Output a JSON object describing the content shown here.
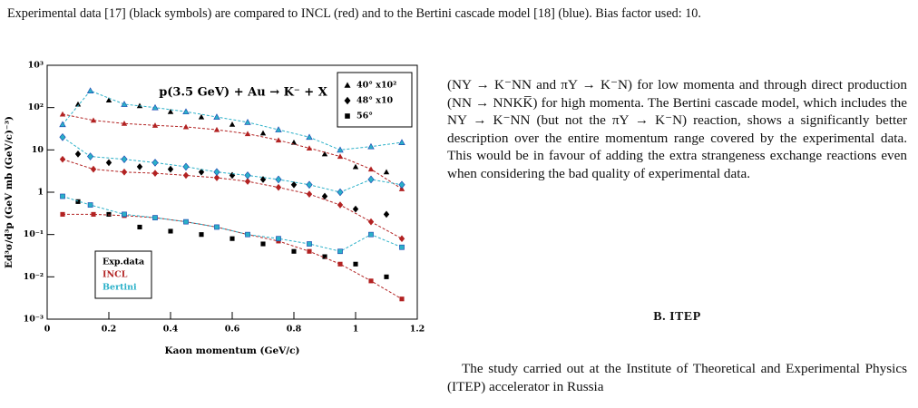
{
  "caption": "Experimental data [17] (black symbols) are compared to INCL (red) and to the Bertini cascade model [18] (blue). Bias factor used: 10.",
  "body": {
    "paragraph_1": "(NY → K⁻NN and πY → K⁻N) for low momenta and through direct production (NN → NNKK̅) for high momenta. The Bertini cascade model, which includes the NY → K⁻NN (but not the πY → K⁻N) reaction, shows a significantly better description over the entire momentum range covered by the experimental data. This would be in favour of adding the extra strangeness exchange reactions even when considering the bad quality of experimental data.",
    "section_heading": "B.   ITEP",
    "paragraph_2": "The study carried out at the Institute of Theoretical and Experimental Physics (ITEP) accelerator in Russia"
  },
  "chart_data": {
    "type": "scatter",
    "title": "p(3.5 GeV) + Au → K⁻ + X",
    "x_label": "Kaon momentum (GeV/c)",
    "y_label": "Ed³σ/d³p (GeV mb (GeV/c)⁻³)",
    "xlim": [
      0,
      1.2
    ],
    "xticks": [
      0,
      0.2,
      0.4,
      0.6,
      0.8,
      1,
      1.2
    ],
    "ylim": [
      0.001,
      1000
    ],
    "log_y": true,
    "yticks": [
      {
        "value": 0.001,
        "label": "10⁻³"
      },
      {
        "value": 0.01,
        "label": "10⁻²"
      },
      {
        "value": 0.1,
        "label": "10⁻¹"
      },
      1,
      {
        "value": 10,
        "label": "10"
      },
      {
        "value": 100,
        "label": "10²"
      },
      {
        "value": 1000,
        "label": "10³"
      }
    ],
    "angles": [
      {
        "label": "40° x10²",
        "marker": "triangle"
      },
      {
        "label": "48° x10",
        "marker": "diamond"
      },
      {
        "label": "56°",
        "marker": "square"
      }
    ],
    "models": [
      {
        "name": "Exp.data",
        "color": "#000000",
        "line": false,
        "series": [
          {
            "x": [
              0.1,
              0.2,
              0.3,
              0.4,
              0.5,
              0.6,
              0.7,
              0.8,
              0.9,
              1.0,
              1.1
            ],
            "values": [
              120,
              150,
              110,
              80,
              60,
              40,
              25,
              15,
              8,
              4,
              3
            ]
          },
          {
            "x": [
              0.1,
              0.2,
              0.3,
              0.4,
              0.5,
              0.6,
              0.7,
              0.8,
              0.9,
              1.0,
              1.1
            ],
            "values": [
              8,
              5,
              4,
              3.5,
              3,
              2.5,
              2,
              1.5,
              0.8,
              0.4,
              0.3
            ]
          },
          {
            "x": [
              0.1,
              0.2,
              0.3,
              0.4,
              0.5,
              0.6,
              0.7,
              0.8,
              0.9,
              1.0,
              1.1
            ],
            "values": [
              0.6,
              0.3,
              0.15,
              0.12,
              0.1,
              0.08,
              0.06,
              0.04,
              0.03,
              0.02,
              0.01
            ]
          }
        ]
      },
      {
        "name": "INCL",
        "color": "#b22222",
        "line": true,
        "series": [
          {
            "x": [
              0.05,
              0.15,
              0.25,
              0.35,
              0.45,
              0.55,
              0.65,
              0.75,
              0.85,
              0.95,
              1.05,
              1.15
            ],
            "values": [
              70,
              50,
              42,
              38,
              35,
              30,
              24,
              17,
              11,
              7,
              3.5,
              1.2
            ]
          },
          {
            "x": [
              0.05,
              0.15,
              0.25,
              0.35,
              0.45,
              0.55,
              0.65,
              0.75,
              0.85,
              0.95,
              1.05,
              1.15
            ],
            "values": [
              6,
              3.5,
              3,
              2.8,
              2.5,
              2.2,
              1.8,
              1.3,
              0.9,
              0.5,
              0.2,
              0.08
            ]
          },
          {
            "x": [
              0.05,
              0.15,
              0.25,
              0.35,
              0.45,
              0.55,
              0.65,
              0.75,
              0.85,
              0.95,
              1.05,
              1.15
            ],
            "values": [
              0.3,
              0.3,
              0.28,
              0.25,
              0.2,
              0.15,
              0.1,
              0.07,
              0.04,
              0.02,
              0.008,
              0.003
            ]
          }
        ]
      },
      {
        "name": "Bertini",
        "color": "#2ab0c8",
        "line": true,
        "series": [
          {
            "x": [
              0.05,
              0.14,
              0.25,
              0.35,
              0.45,
              0.55,
              0.65,
              0.75,
              0.85,
              0.95,
              1.05,
              1.15
            ],
            "values": [
              40,
              250,
              120,
              100,
              80,
              60,
              45,
              30,
              20,
              10,
              12,
              15
            ]
          },
          {
            "x": [
              0.05,
              0.14,
              0.25,
              0.35,
              0.45,
              0.55,
              0.65,
              0.75,
              0.85,
              0.95,
              1.05,
              1.15
            ],
            "values": [
              20,
              7,
              6,
              5,
              4,
              3,
              2.5,
              2,
              1.5,
              1,
              2,
              1.5
            ]
          },
          {
            "x": [
              0.05,
              0.14,
              0.25,
              0.35,
              0.45,
              0.55,
              0.65,
              0.75,
              0.85,
              0.95,
              1.05,
              1.15
            ],
            "values": [
              0.8,
              0.5,
              0.3,
              0.25,
              0.2,
              0.15,
              0.1,
              0.08,
              0.06,
              0.04,
              0.1,
              0.05
            ]
          }
        ]
      }
    ]
  }
}
